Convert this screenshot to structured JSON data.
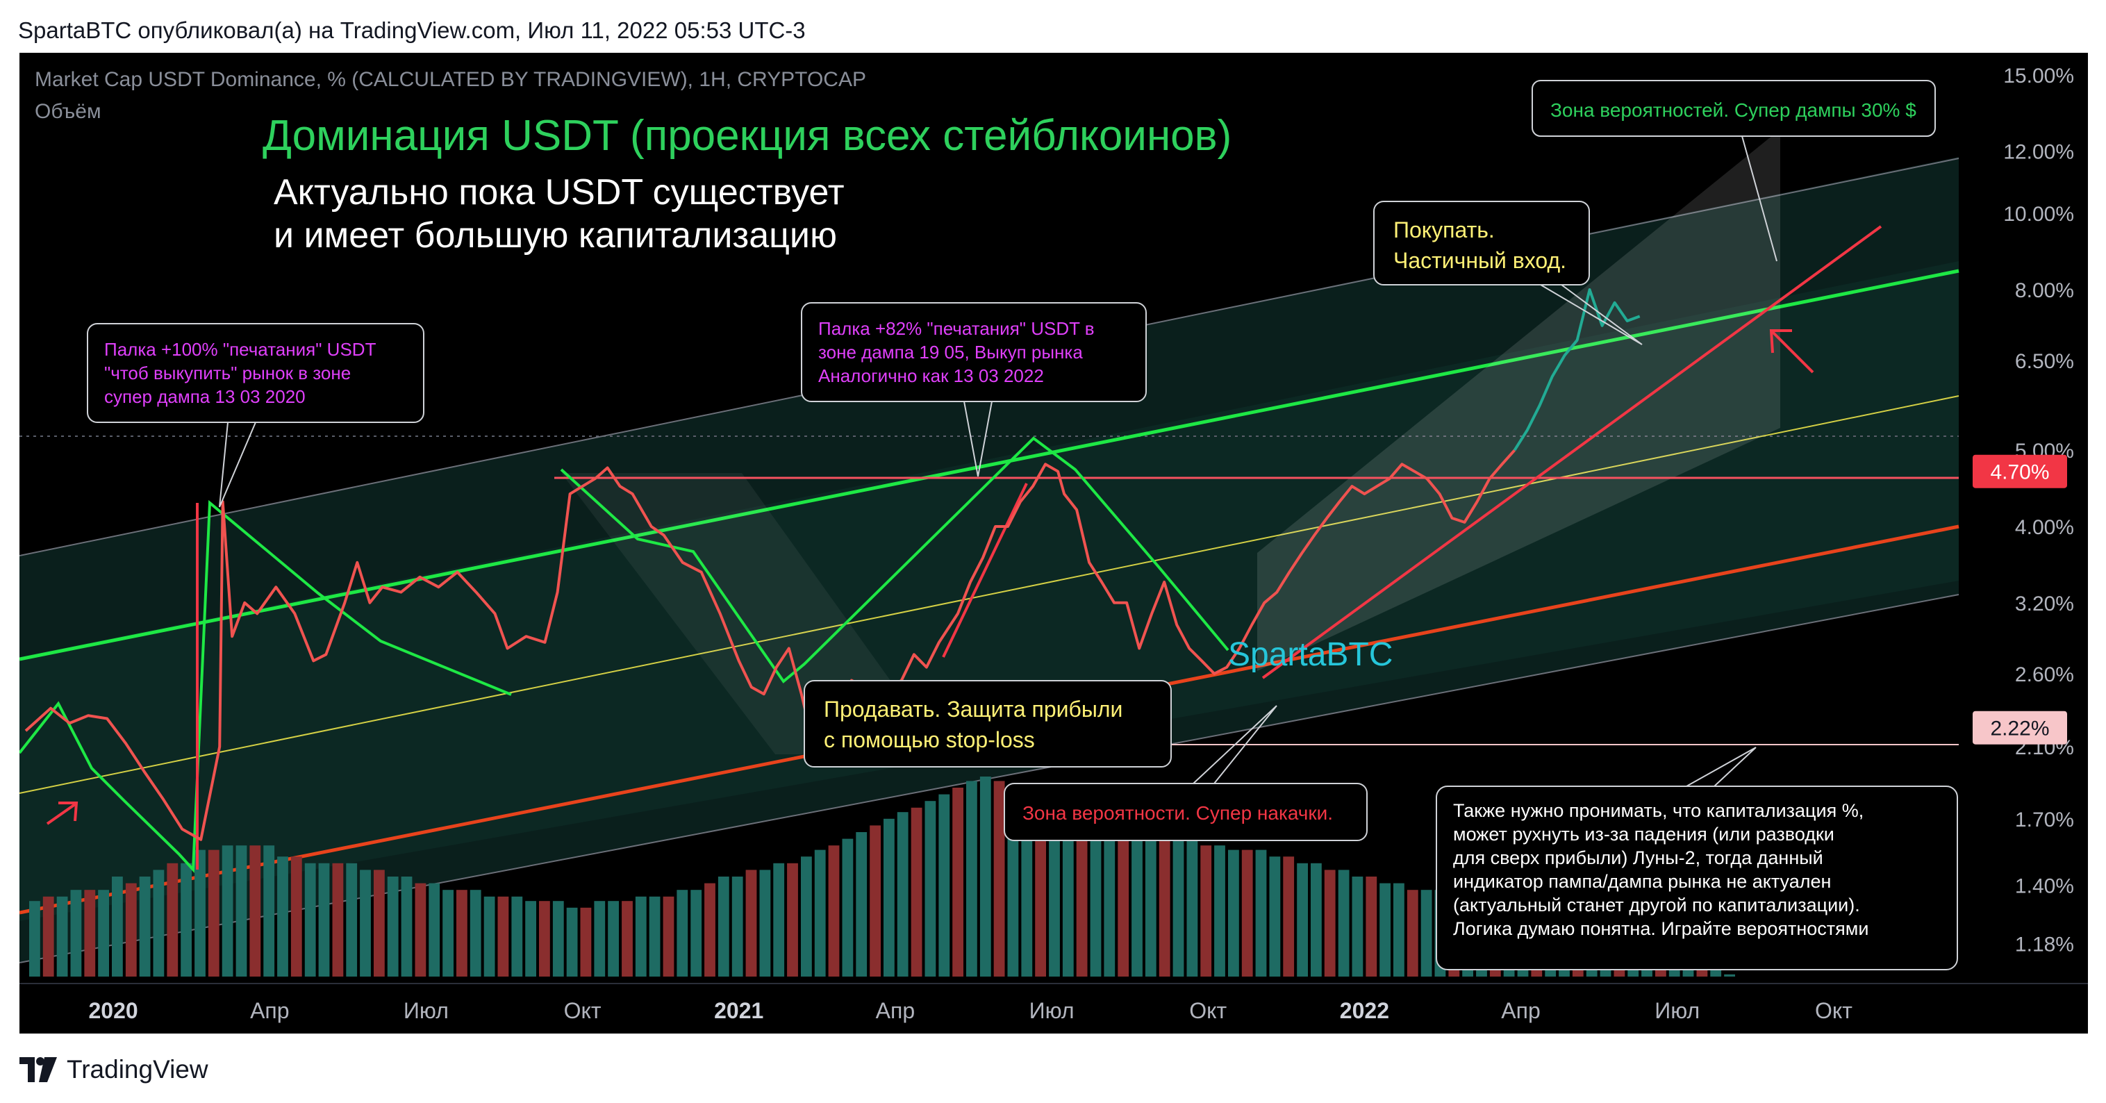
{
  "header": {
    "publisher": "SpartaBTC опубликовал(а) на TradingView.com, Июл 11, 2022 05:53 UTC-3"
  },
  "footer": {
    "brand": "TradingView"
  },
  "chart_data": {
    "type": "line",
    "symbol_line": "Market Cap USDT Dominance, % (CALCULATED BY TRADINGVIEW), 1H, CRYPTOCAP",
    "volume_label": "Объём",
    "title": "Доминация USDT (проекция всех стейблкоинов)",
    "subtitle_line1": "Актуально пока USDT существует",
    "subtitle_line2": "и имеет большую капитализацию",
    "watermark": "SpartaBTC",
    "yscale": "log",
    "ylim": [
      1.05,
      16.0
    ],
    "xlim": [
      2019.85,
      2022.95
    ],
    "y_ticks": [
      {
        "v": 15.0,
        "label": "15.00%"
      },
      {
        "v": 12.0,
        "label": "12.00%"
      },
      {
        "v": 10.0,
        "label": "10.00%"
      },
      {
        "v": 8.0,
        "label": "8.00%"
      },
      {
        "v": 6.5,
        "label": "6.50%"
      },
      {
        "v": 5.0,
        "label": "5.00%"
      },
      {
        "v": 4.0,
        "label": "4.00%"
      },
      {
        "v": 3.2,
        "label": "3.20%"
      },
      {
        "v": 2.6,
        "label": "2.60%"
      },
      {
        "v": 2.1,
        "label": "2.10%"
      },
      {
        "v": 1.7,
        "label": "1.70%"
      },
      {
        "v": 1.4,
        "label": "1.40%"
      },
      {
        "v": 1.18,
        "label": "1.18%"
      }
    ],
    "price_badges": [
      {
        "v": 4.7,
        "label": "4.70%",
        "color": "#f23645",
        "text_color": "#ffffff"
      },
      {
        "v": 2.22,
        "label": "2.22%",
        "color": "#f7c6c9",
        "text_color": "#131722"
      }
    ],
    "x_ticks": [
      {
        "t": 2020.0,
        "label": "2020",
        "bold": true
      },
      {
        "t": 2020.25,
        "label": "Апр",
        "bold": false
      },
      {
        "t": 2020.5,
        "label": "Июл",
        "bold": false
      },
      {
        "t": 2020.75,
        "label": "Окт",
        "bold": false
      },
      {
        "t": 2021.0,
        "label": "2021",
        "bold": true
      },
      {
        "t": 2021.25,
        "label": "Апр",
        "bold": false
      },
      {
        "t": 2021.5,
        "label": "Июл",
        "bold": false
      },
      {
        "t": 2021.75,
        "label": "Окт",
        "bold": false
      },
      {
        "t": 2022.0,
        "label": "2022",
        "bold": true
      },
      {
        "t": 2022.25,
        "label": "Апр",
        "bold": false
      },
      {
        "t": 2022.5,
        "label": "Июл",
        "bold": false
      },
      {
        "t": 2022.75,
        "label": "Окт",
        "bold": false
      }
    ],
    "series": [
      {
        "color": "#f05350",
        "points": [
          [
            2019.86,
            2.2
          ],
          [
            2019.9,
            2.35
          ],
          [
            2019.93,
            2.25
          ],
          [
            2019.96,
            2.3
          ],
          [
            2019.99,
            2.28
          ],
          [
            2020.02,
            2.12
          ],
          [
            2020.05,
            1.95
          ],
          [
            2020.08,
            1.8
          ],
          [
            2020.11,
            1.65
          ],
          [
            2020.14,
            1.6
          ],
          [
            2020.17,
            2.1
          ],
          [
            2020.175,
            4.3
          ],
          [
            2020.19,
            2.9
          ],
          [
            2020.21,
            3.2
          ],
          [
            2020.23,
            3.1
          ],
          [
            2020.26,
            3.35
          ],
          [
            2020.29,
            3.1
          ],
          [
            2020.32,
            2.7
          ],
          [
            2020.34,
            2.75
          ],
          [
            2020.37,
            3.2
          ],
          [
            2020.39,
            3.6
          ],
          [
            2020.41,
            3.2
          ],
          [
            2020.43,
            3.35
          ],
          [
            2020.46,
            3.3
          ],
          [
            2020.49,
            3.45
          ],
          [
            2020.52,
            3.35
          ],
          [
            2020.55,
            3.5
          ],
          [
            2020.58,
            3.3
          ],
          [
            2020.61,
            3.1
          ],
          [
            2020.63,
            2.8
          ],
          [
            2020.66,
            2.9
          ],
          [
            2020.69,
            2.85
          ],
          [
            2020.71,
            3.3
          ],
          [
            2020.73,
            4.4
          ],
          [
            2020.75,
            4.5
          ],
          [
            2020.77,
            4.6
          ],
          [
            2020.79,
            4.75
          ],
          [
            2020.81,
            4.5
          ],
          [
            2020.83,
            4.4
          ],
          [
            2020.86,
            4.0
          ],
          [
            2020.88,
            3.9
          ],
          [
            2020.91,
            3.6
          ],
          [
            2020.94,
            3.5
          ],
          [
            2020.97,
            3.1
          ],
          [
            2021.0,
            2.7
          ],
          [
            2021.02,
            2.5
          ],
          [
            2021.04,
            2.45
          ],
          [
            2021.06,
            2.65
          ],
          [
            2021.08,
            2.8
          ],
          [
            2021.1,
            2.45
          ],
          [
            2021.12,
            2.1
          ],
          [
            2021.14,
            2.05
          ],
          [
            2021.16,
            2.3
          ],
          [
            2021.18,
            2.55
          ],
          [
            2021.2,
            2.5
          ],
          [
            2021.23,
            2.45
          ],
          [
            2021.26,
            2.55
          ],
          [
            2021.28,
            2.75
          ],
          [
            2021.3,
            2.65
          ],
          [
            2021.32,
            2.85
          ],
          [
            2021.35,
            3.1
          ],
          [
            2021.37,
            3.4
          ],
          [
            2021.39,
            3.65
          ],
          [
            2021.41,
            4.0
          ],
          [
            2021.43,
            4.0
          ],
          [
            2021.45,
            4.3
          ],
          [
            2021.47,
            4.5
          ],
          [
            2021.49,
            4.8
          ],
          [
            2021.51,
            4.7
          ],
          [
            2021.52,
            4.4
          ],
          [
            2021.54,
            4.2
          ],
          [
            2021.56,
            3.6
          ],
          [
            2021.58,
            3.4
          ],
          [
            2021.6,
            3.2
          ],
          [
            2021.62,
            3.2
          ],
          [
            2021.64,
            2.8
          ],
          [
            2021.66,
            3.1
          ],
          [
            2021.68,
            3.4
          ],
          [
            2021.7,
            3.0
          ],
          [
            2021.72,
            2.8
          ],
          [
            2021.74,
            2.7
          ],
          [
            2021.76,
            2.6
          ],
          [
            2021.78,
            2.65
          ],
          [
            2021.8,
            2.8
          ],
          [
            2021.82,
            3.0
          ],
          [
            2021.84,
            3.2
          ],
          [
            2021.86,
            3.3
          ],
          [
            2021.88,
            3.5
          ],
          [
            2021.9,
            3.7
          ],
          [
            2021.92,
            3.9
          ],
          [
            2021.94,
            4.1
          ],
          [
            2021.96,
            4.3
          ],
          [
            2021.98,
            4.5
          ],
          [
            2022.0,
            4.4
          ],
          [
            2022.02,
            4.5
          ],
          [
            2022.04,
            4.6
          ],
          [
            2022.06,
            4.8
          ],
          [
            2022.08,
            4.7
          ],
          [
            2022.1,
            4.6
          ],
          [
            2022.12,
            4.4
          ],
          [
            2022.14,
            4.1
          ],
          [
            2022.16,
            4.05
          ],
          [
            2022.18,
            4.3
          ],
          [
            2022.2,
            4.6
          ],
          [
            2022.22,
            4.8
          ],
          [
            2022.24,
            5.0
          ]
        ]
      },
      {
        "color": "#22ab94",
        "points": [
          [
            2022.24,
            5.0
          ],
          [
            2022.26,
            5.3
          ],
          [
            2022.28,
            5.7
          ],
          [
            2022.3,
            6.2
          ],
          [
            2022.32,
            6.6
          ],
          [
            2022.34,
            6.9
          ],
          [
            2022.36,
            8.0
          ],
          [
            2022.38,
            7.2
          ],
          [
            2022.4,
            7.7
          ],
          [
            2022.42,
            7.3
          ],
          [
            2022.44,
            7.4
          ]
        ]
      }
    ],
    "volume": [
      34,
      36,
      36,
      39,
      39,
      39,
      45,
      42,
      45,
      48,
      51,
      51,
      57,
      57,
      59,
      59,
      59,
      59,
      54,
      54,
      51,
      51,
      51,
      51,
      48,
      48,
      45,
      45,
      42,
      42,
      39,
      39,
      39,
      36,
      36,
      36,
      34,
      34,
      34,
      31,
      31,
      34,
      34,
      34,
      36,
      36,
      36,
      39,
      39,
      42,
      45,
      45,
      48,
      48,
      51,
      51,
      54,
      57,
      59,
      62,
      65,
      68,
      71,
      74,
      76,
      79,
      82,
      85,
      88,
      90,
      88,
      85,
      82,
      79,
      76,
      76,
      74,
      71,
      71,
      68,
      68,
      65,
      65,
      62,
      62,
      59,
      59,
      57,
      57,
      57,
      54,
      54,
      51,
      51,
      48,
      48,
      45,
      45,
      42,
      42,
      39,
      39,
      39,
      36,
      36,
      34,
      34,
      31,
      31,
      28,
      28,
      25,
      25,
      23,
      23,
      20,
      20,
      17,
      14,
      11,
      8,
      6,
      3,
      1
    ],
    "horizontal_levels": [
      {
        "v": 4.7,
        "color": "#f7525f"
      },
      {
        "v": 2.22,
        "color": "#f7c6c9"
      }
    ],
    "annotations": [
      {
        "id": "ann-top-right",
        "text": "Зона вероятностей. Супер дампы 30% $",
        "text_color": "#2ed15d"
      },
      {
        "id": "ann-buy",
        "lines": [
          "Покупать.",
          "Частичный вход."
        ],
        "text_color": "#fff176"
      },
      {
        "id": "ann-2020",
        "lines": [
          "Палка +100% \"печатания\" USDT",
          "\"чтоб выкупить\" рынок в зоне",
          "супер дампа 13 03 2020"
        ],
        "text_color": "#e040fb"
      },
      {
        "id": "ann-2021",
        "lines": [
          "Палка +82% \"печатания\" USDT в",
          "зоне дампа 19 05, Выкуп рынка",
          "Аналогично как  13 03 2022"
        ],
        "text_color": "#e040fb"
      },
      {
        "id": "ann-sell",
        "lines": [
          "Продавать. Защита прибыли",
          "с помощью stop-loss"
        ],
        "text_color": "#fff176"
      },
      {
        "id": "ann-pump",
        "text": "Зона вероятности. Супер накачки.",
        "text_color": "#f23645"
      },
      {
        "id": "ann-note",
        "lines": [
          "Также нужно пронимать, что капитализация %,",
          "может рухнуть из-за падения (или разводки",
          "для сверх прибыли) Луны-2, тогда данный",
          "индикатор пампа/дампа рынка не актуален",
          "(актуальный станет другой по капитализации).",
          "Логика думаю понятна. Играйте вероятностями"
        ],
        "text_color": "#ffffff"
      }
    ]
  }
}
